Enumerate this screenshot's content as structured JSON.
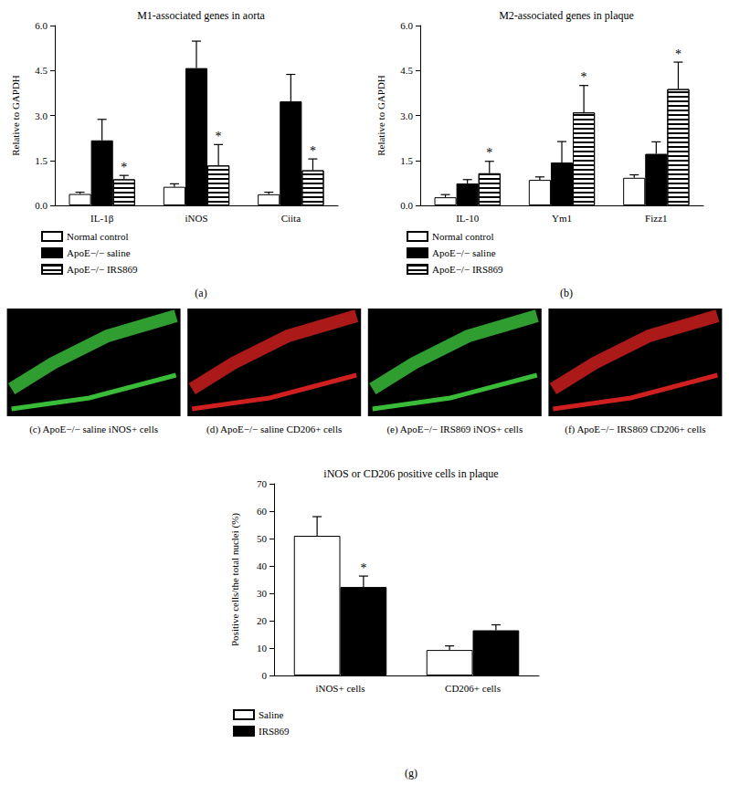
{
  "chart_data": [
    {
      "type": "bar",
      "panel": "(a)",
      "title": "M1-associated genes in aorta",
      "y_label": "Relative to GAPDH",
      "categories": [
        "IL-1β",
        "iNOS",
        "Ciita"
      ],
      "series": [
        {
          "name": "Normal control",
          "color": "#ffffff",
          "values": [
            0.38,
            0.62,
            0.37
          ],
          "errors": [
            0.06,
            0.1,
            0.07
          ],
          "marks": [
            null,
            null,
            null
          ]
        },
        {
          "name": "ApoE−/− saline",
          "color": "#000000",
          "values": [
            2.17,
            4.58,
            3.47
          ],
          "errors": [
            0.7,
            0.9,
            0.9
          ],
          "marks": [
            null,
            null,
            null
          ]
        },
        {
          "name": "ApoE−/− IRS869",
          "color": "#ffffff",
          "marker": "hlines",
          "values": [
            0.87,
            1.33,
            1.17
          ],
          "errors": [
            0.13,
            0.7,
            0.38
          ],
          "marks": [
            "*",
            "*",
            "*"
          ]
        }
      ],
      "ylim": [
        0,
        6
      ],
      "yticks": [
        {
          "value": 0,
          "label": "0.0"
        },
        1.5,
        {
          "value": 3,
          "label": "3.0"
        },
        4.5,
        {
          "value": 6,
          "label": "6.0"
        }
      ],
      "legend": "below"
    },
    {
      "type": "bar",
      "panel": "(b)",
      "title": "M2-associated genes in plaque",
      "y_label": "Relative to GAPDH",
      "categories": [
        "IL-10",
        "Ym1",
        "Fizz1"
      ],
      "series": [
        {
          "name": "Normal control",
          "color": "#ffffff",
          "values": [
            0.27,
            0.85,
            0.92
          ],
          "errors": [
            0.09,
            0.1,
            0.1
          ],
          "marks": [
            null,
            null,
            null
          ]
        },
        {
          "name": "ApoE−/− saline",
          "color": "#000000",
          "values": [
            0.73,
            1.43,
            1.72
          ],
          "errors": [
            0.13,
            0.7,
            0.4
          ],
          "marks": [
            null,
            null,
            null
          ]
        },
        {
          "name": "ApoE−/− IRS869",
          "color": "#ffffff",
          "marker": "hlines",
          "values": [
            1.07,
            3.1,
            3.88
          ],
          "errors": [
            0.4,
            0.9,
            0.9
          ],
          "marks": [
            "*",
            "*",
            "*"
          ]
        }
      ],
      "ylim": [
        0,
        6
      ],
      "yticks": [
        {
          "value": 0,
          "label": "0.0"
        },
        1.5,
        {
          "value": 3,
          "label": "3.0"
        },
        4.5,
        {
          "value": 6,
          "label": "6.0"
        }
      ],
      "legend": "below"
    },
    {
      "type": "bar",
      "panel": "(g)",
      "title": "iNOS or CD206 positive cells in plaque",
      "y_label": "Positive cells/the total nuclei (%)",
      "categories": [
        "iNOS+ cells",
        "CD206+ cells"
      ],
      "series": [
        {
          "name": "Saline",
          "color": "#ffffff",
          "values": [
            51,
            9.3
          ],
          "errors": [
            7,
            1.5
          ],
          "marks": [
            null,
            null
          ]
        },
        {
          "name": "IRS869",
          "color": "#000000",
          "values": [
            32.3,
            16.5
          ],
          "errors": [
            4,
            2
          ],
          "marks": [
            "*",
            null
          ]
        }
      ],
      "ylim": [
        0,
        70
      ],
      "yticks": [
        0,
        10,
        20,
        30,
        40,
        50,
        60,
        70
      ],
      "legend": "below"
    }
  ],
  "images": [
    {
      "caption": "(c) ApoE−/− saline iNOS+ cells",
      "color": "#3fd23f"
    },
    {
      "caption": "(d) ApoE−/− saline CD206+ cells",
      "color": "#e52222"
    },
    {
      "caption": "(e) ApoE−/− IRS869 iNOS+ cells",
      "color": "#3fd23f"
    },
    {
      "caption": "(f) ApoE−/− IRS869 CD206+ cells",
      "color": "#e52222"
    }
  ]
}
